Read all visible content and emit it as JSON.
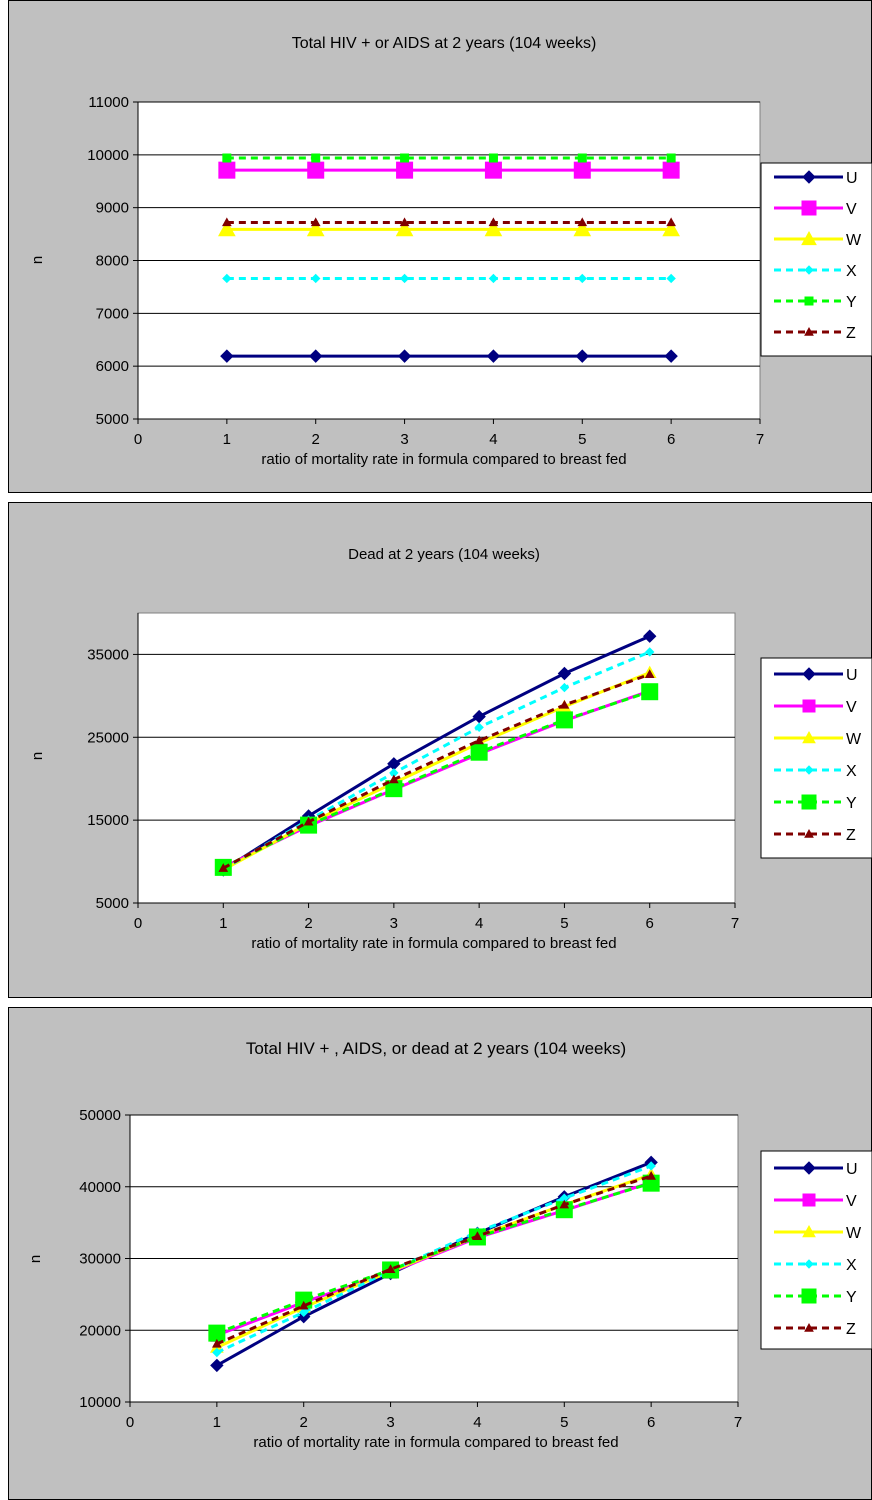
{
  "chart_data": [
    {
      "type": "line",
      "title": "Total HIV + or AIDS at 2 years (104 weeks)",
      "xlabel": "ratio of mortality rate in formula compared to breast fed",
      "ylabel": "n",
      "xlim": [
        0,
        7
      ],
      "ylim": [
        5000,
        11000
      ],
      "xticks": [
        0,
        1,
        2,
        3,
        4,
        5,
        6,
        7
      ],
      "yticks": [
        5000,
        6000,
        7000,
        8000,
        9000,
        10000,
        11000
      ],
      "grid": true,
      "legend_position": "right",
      "x": [
        1,
        2,
        3,
        4,
        5,
        6
      ],
      "series": [
        {
          "name": "U",
          "values": [
            6190,
            6190,
            6190,
            6190,
            6190,
            6190
          ],
          "color": "#000080",
          "marker": "diamond",
          "dash": "solid",
          "marker_size": "medium"
        },
        {
          "name": "V",
          "values": [
            9710,
            9710,
            9710,
            9710,
            9710,
            9710
          ],
          "color": "#FF00FF",
          "marker": "square",
          "dash": "solid",
          "marker_size": "large"
        },
        {
          "name": "W",
          "values": [
            8590,
            8590,
            8590,
            8590,
            8590,
            8590
          ],
          "color": "#FFFF00",
          "marker": "triangle",
          "dash": "solid",
          "marker_size": "large"
        },
        {
          "name": "X",
          "values": [
            7660,
            7660,
            7660,
            7660,
            7660,
            7660
          ],
          "color": "#00FFFF",
          "marker": "diamond",
          "dash": "dashed",
          "marker_size": "small"
        },
        {
          "name": "Y",
          "values": [
            9940,
            9940,
            9940,
            9940,
            9940,
            9940
          ],
          "color": "#00FF00",
          "marker": "square",
          "dash": "dashed",
          "marker_size": "small"
        },
        {
          "name": "Z",
          "values": [
            8720,
            8720,
            8720,
            8720,
            8720,
            8720
          ],
          "color": "#800000",
          "marker": "triangle",
          "dash": "dashed",
          "marker_size": "small"
        }
      ]
    },
    {
      "type": "line",
      "title": "Dead at 2 years (104 weeks)",
      "xlabel": "ratio of mortality rate in formula compared to breast fed",
      "ylabel": "n",
      "xlim": [
        0,
        7
      ],
      "ylim": [
        5000,
        40000
      ],
      "xticks": [
        0,
        1,
        2,
        3,
        4,
        5,
        6,
        7
      ],
      "yticks": [
        5000,
        15000,
        25000,
        35000
      ],
      "gridlines": [
        15000,
        25000,
        35000
      ],
      "grid": true,
      "legend_position": "right",
      "x": [
        1,
        2,
        3,
        4,
        5,
        6
      ],
      "series": [
        {
          "name": "U",
          "values": [
            9000,
            15500,
            21800,
            27500,
            32700,
            37200
          ],
          "color": "#000080",
          "marker": "diamond",
          "dash": "solid",
          "marker_size": "medium"
        },
        {
          "name": "V",
          "values": [
            9300,
            14300,
            18700,
            23000,
            27000,
            30600
          ],
          "color": "#FF00FF",
          "marker": "square",
          "dash": "solid",
          "marker_size": "medium"
        },
        {
          "name": "W",
          "values": [
            9000,
            14600,
            19500,
            24300,
            28700,
            32800
          ],
          "color": "#FFFF00",
          "marker": "triangle",
          "dash": "solid",
          "marker_size": "medium"
        },
        {
          "name": "X",
          "values": [
            9100,
            15000,
            20700,
            26200,
            31000,
            35300
          ],
          "color": "#00FFFF",
          "marker": "diamond",
          "dash": "dashed",
          "marker_size": "small"
        },
        {
          "name": "Y",
          "values": [
            9300,
            14400,
            18800,
            23200,
            27100,
            30500
          ],
          "color": "#00FF00",
          "marker": "square",
          "dash": "dashed",
          "marker_size": "large"
        },
        {
          "name": "Z",
          "values": [
            9200,
            14800,
            19900,
            24600,
            28900,
            32600
          ],
          "color": "#800000",
          "marker": "triangle",
          "dash": "dashed",
          "marker_size": "small"
        }
      ]
    },
    {
      "type": "line",
      "title": "Total HIV + , AIDS, or dead at 2 years (104 weeks)",
      "xlabel": "ratio of mortality rate in formula compared to breast fed",
      "ylabel": "n",
      "xlim": [
        0,
        7
      ],
      "ylim": [
        10000,
        50000
      ],
      "xticks": [
        0,
        1,
        2,
        3,
        4,
        5,
        6,
        7
      ],
      "yticks": [
        10000,
        20000,
        30000,
        40000,
        50000
      ],
      "grid": true,
      "legend_position": "right",
      "x": [
        1,
        2,
        3,
        4,
        5,
        6
      ],
      "series": [
        {
          "name": "U",
          "values": [
            15100,
            21900,
            27900,
            33500,
            38600,
            43400
          ],
          "color": "#000080",
          "marker": "diamond",
          "dash": "solid",
          "marker_size": "medium"
        },
        {
          "name": "V",
          "values": [
            19300,
            23900,
            28100,
            32900,
            36700,
            40600
          ],
          "color": "#FF00FF",
          "marker": "square",
          "dash": "solid",
          "marker_size": "medium"
        },
        {
          "name": "W",
          "values": [
            17600,
            23200,
            28200,
            33100,
            37500,
            41700
          ],
          "color": "#FFFF00",
          "marker": "triangle",
          "dash": "solid",
          "marker_size": "medium"
        },
        {
          "name": "X",
          "values": [
            16900,
            22500,
            28300,
            33700,
            38400,
            42900
          ],
          "color": "#00FFFF",
          "marker": "diamond",
          "dash": "dashed",
          "marker_size": "small"
        },
        {
          "name": "Y",
          "values": [
            19600,
            24200,
            28400,
            33000,
            36800,
            40500
          ],
          "color": "#00FF00",
          "marker": "square",
          "dash": "dashed",
          "marker_size": "large"
        },
        {
          "name": "Z",
          "values": [
            18100,
            23400,
            28500,
            33100,
            37500,
            41500
          ],
          "color": "#800000",
          "marker": "triangle",
          "dash": "dashed",
          "marker_size": "small"
        }
      ]
    }
  ]
}
